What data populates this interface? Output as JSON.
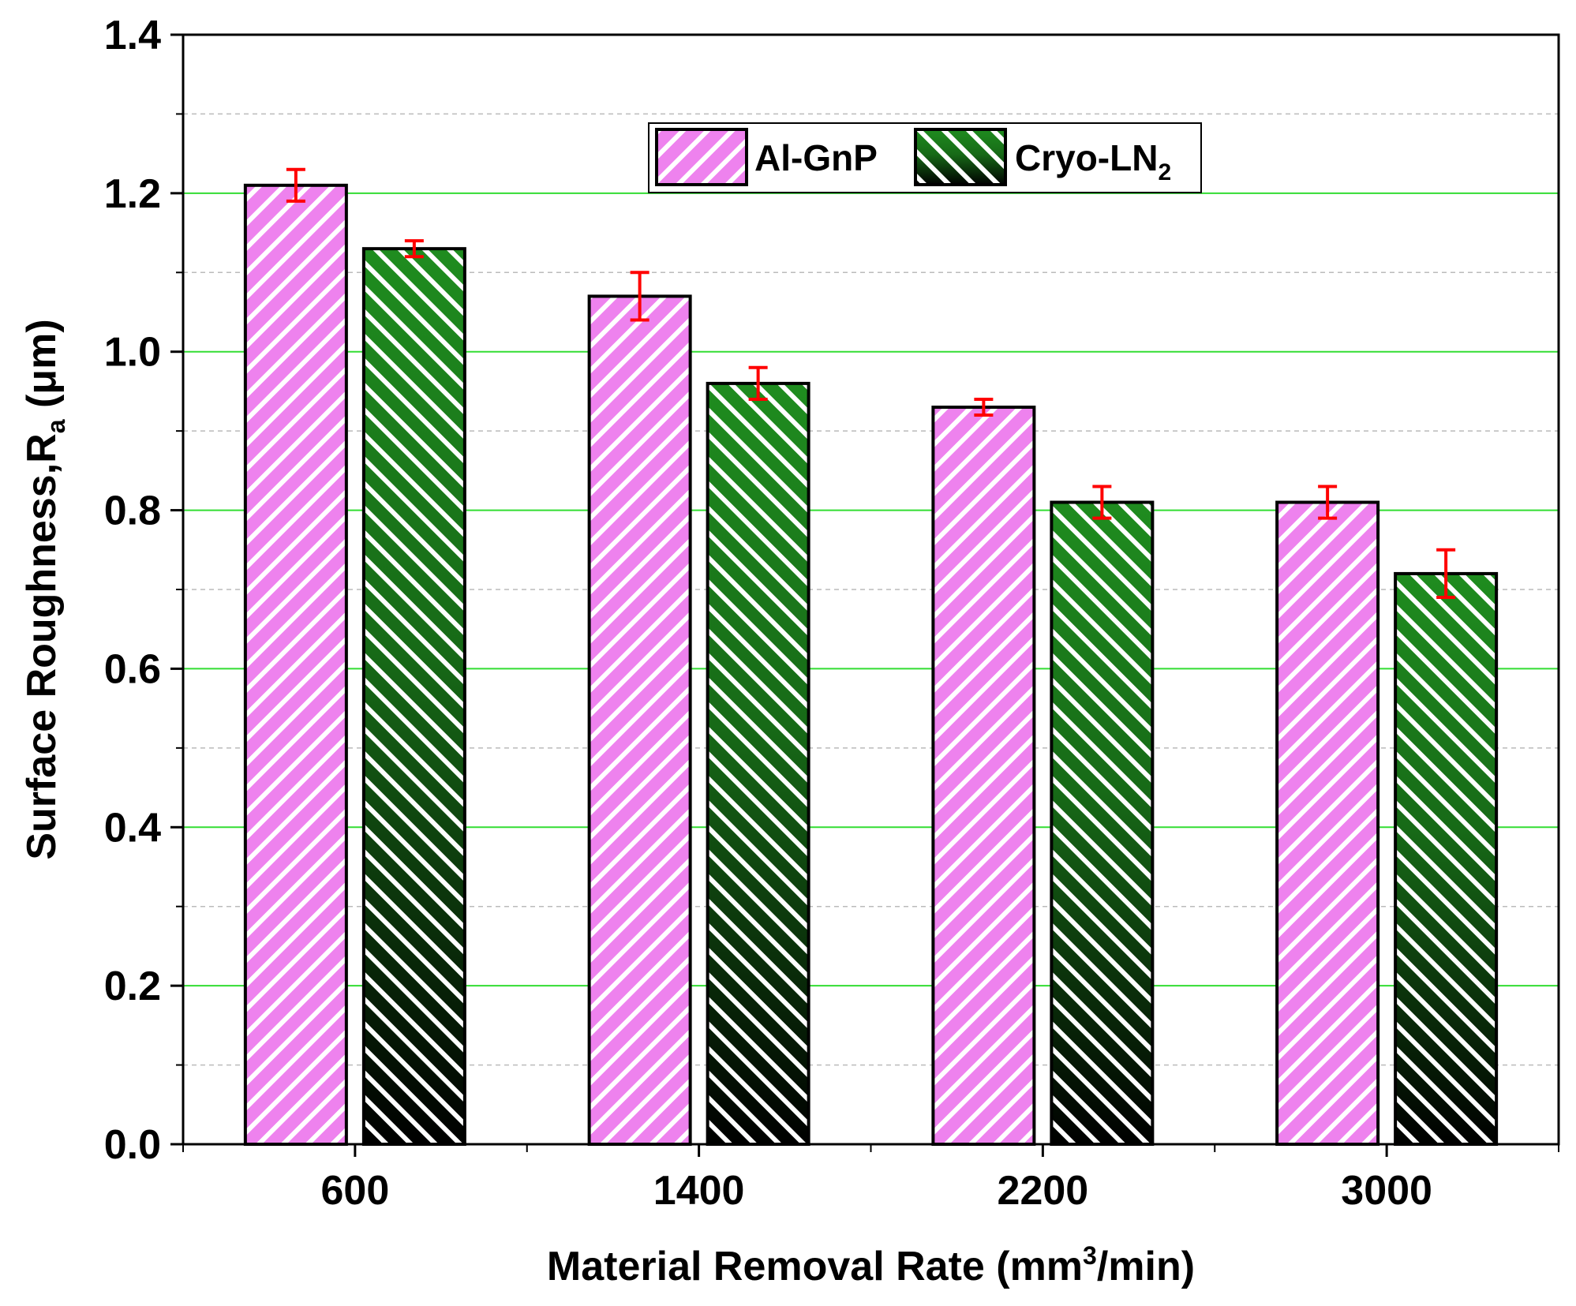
{
  "chart_data": {
    "type": "bar",
    "xlabel": "Material Removal Rate (mm",
    "xlabel_sup": "3",
    "xlabel_tail": "/min)",
    "ylabel": "Surface Roughness,R",
    "ylabel_sub": "a",
    "ylabel_tail": " (μm)",
    "ylim": [
      0,
      1.4
    ],
    "yticks": [
      "0.0",
      "0.2",
      "0.4",
      "0.6",
      "0.8",
      "1.0",
      "1.2",
      "1.4"
    ],
    "categories": [
      "600",
      "1400",
      "2200",
      "3000"
    ],
    "grid": "horizontal",
    "legend_position": "top-center",
    "series": [
      {
        "name": "Al-GnP",
        "name_sub": "",
        "color": "#ee82ee",
        "values": [
          1.21,
          1.07,
          0.93,
          0.81
        ],
        "errors": [
          0.02,
          0.03,
          0.01,
          0.02
        ]
      },
      {
        "name": "Cryo-LN",
        "name_sub": "2",
        "color": "#1f8c1f",
        "values": [
          1.13,
          0.96,
          0.81,
          0.72
        ],
        "errors": [
          0.01,
          0.02,
          0.02,
          0.03
        ]
      }
    ],
    "error_bar_color": "#ff0000",
    "major_grid_color": "#33dd33",
    "minor_grid_color": "#bbbbbb"
  }
}
